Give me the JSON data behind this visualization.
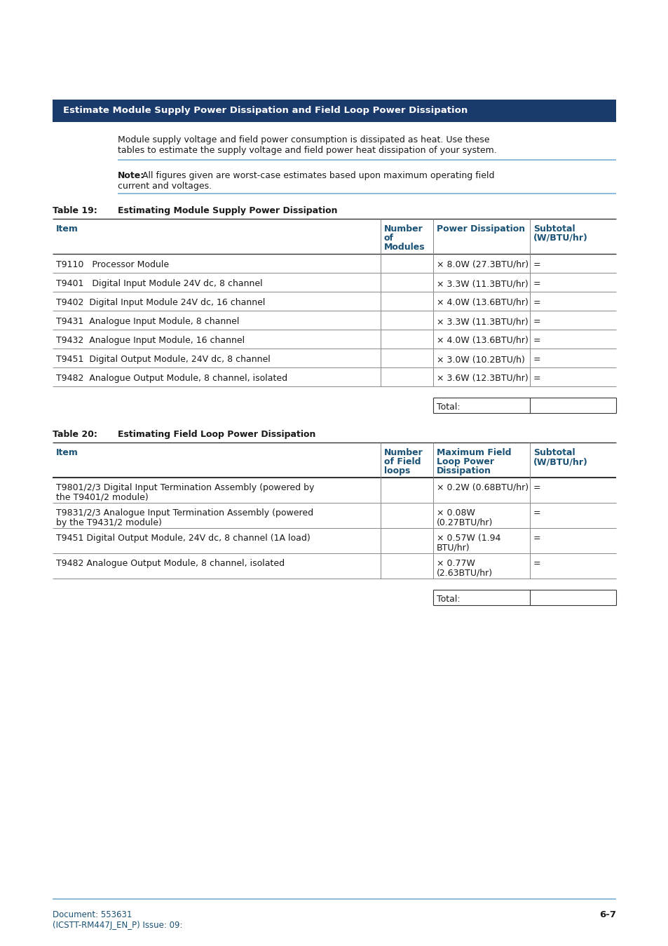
{
  "page_bg": "#ffffff",
  "header_bg": "#1a3a6b",
  "header_text_color": "#ffffff",
  "header_text": "Estimate Module Supply Power Dissipation and Field Loop Power Dissipation",
  "body_text_color": "#1a1a1a",
  "table_header_color": "#1a5276",
  "intro_line1": "Module supply voltage and field power consumption is dissipated as heat. Use these",
  "intro_line2": "tables to estimate the supply voltage and field power heat dissipation of your system.",
  "note_bold": "Note:",
  "note_line1_rest": " All figures given are worst-case estimates based upon maximum operating field",
  "note_line2": "current and voltages.",
  "table19_label": "Table 19:",
  "table19_title": "Estimating Module Supply Power Dissipation",
  "table20_label": "Table 20:",
  "table20_title": "Estimating Field Loop Power Dissipation",
  "table19_rows": [
    [
      "T9110   Processor Module",
      "",
      "× 8.0W (27.3BTU/hr)",
      "="
    ],
    [
      "T9401   Digital Input Module 24V dc, 8 channel",
      "",
      "× 3.3W (11.3BTU/hr)",
      "="
    ],
    [
      "T9402  Digital Input Module 24V dc, 16 channel",
      "",
      "× 4.0W (13.6BTU/hr)",
      "="
    ],
    [
      "T9431  Analogue Input Module, 8 channel",
      "",
      "× 3.3W (11.3BTU/hr)",
      "="
    ],
    [
      "T9432  Analogue Input Module, 16 channel",
      "",
      "× 4.0W (13.6BTU/hr)",
      "="
    ],
    [
      "T9451  Digital Output Module, 24V dc, 8 channel",
      "",
      "× 3.0W (10.2BTU/h)",
      "="
    ],
    [
      "T9482  Analogue Output Module, 8 channel, isolated",
      "",
      "× 3.6W (12.3BTU/hr)",
      "="
    ]
  ],
  "table20_rows": [
    [
      "T9801/2/3 Digital Input Termination Assembly (powered by",
      "the T9401/2 module)",
      "",
      "× 0.2W (0.68BTU/hr)",
      "",
      "="
    ],
    [
      "T9831/2/3 Analogue Input Termination Assembly (powered",
      "by the T9431/2 module)",
      "",
      "× 0.08W",
      "(0.27BTU/hr)",
      "="
    ],
    [
      "T9451 Digital Output Module, 24V dc, 8 channel (1A load)",
      "",
      "",
      "× 0.57W (1.94",
      "BTU/hr)",
      "="
    ],
    [
      "T9482 Analogue Output Module, 8 channel, isolated",
      "",
      "",
      "× 0.77W",
      "(2.63BTU/hr)",
      "="
    ]
  ],
  "footer_text1": "Document: 553631",
  "footer_text2": "(ICSTT-RM447J_EN_P) Issue: 09:",
  "footer_right": "6-7",
  "footer_color": "#1a5276",
  "separator_color": "#7aafd4",
  "dark_line": "#333333",
  "mid_line": "#888888"
}
